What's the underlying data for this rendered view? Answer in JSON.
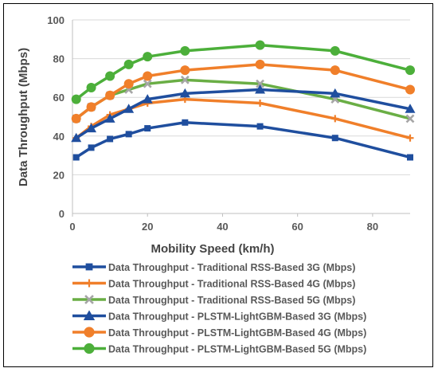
{
  "chart_data": {
    "type": "line",
    "xlabel": "Mobility Speed (km/h)",
    "ylabel": "Data Throughput (Mbps)",
    "xlim": [
      0,
      90
    ],
    "ylim": [
      0,
      100
    ],
    "x_ticks": [
      "0",
      "20",
      "40",
      "60",
      "80"
    ],
    "y_ticks": [
      "0",
      "20",
      "40",
      "60",
      "80",
      "100"
    ],
    "grid": "horizontal",
    "legend_position": "bottom",
    "x": [
      1,
      5,
      10,
      15,
      20,
      30,
      50,
      70,
      90
    ],
    "series": [
      {
        "name": "Data Throughput - Traditional RSS-Based 3G (Mbps)",
        "color": "#1F4E9E",
        "marker": "square",
        "values": [
          29,
          34,
          38.5,
          41,
          44,
          47,
          45,
          39,
          29
        ]
      },
      {
        "name": "Data Throughput - Traditional RSS-Based 4G (Mbps)",
        "color": "#F07F2A",
        "marker": "plus",
        "values": [
          39,
          45,
          51,
          54,
          57,
          59,
          57,
          49,
          39
        ]
      },
      {
        "name": "Data Throughput - Traditional RSS-Based 5G (Mbps)",
        "color": "#6AAE45",
        "marker": "x",
        "values": [
          49,
          55,
          61,
          64,
          67,
          69,
          67,
          59,
          49
        ]
      },
      {
        "name": "Data Throughput - PLSTM-LightGBM-Based 3G (Mbps)",
        "color": "#1F4E9E",
        "marker": "triangle",
        "values": [
          39,
          44,
          49,
          54,
          59,
          62,
          64,
          62,
          54
        ]
      },
      {
        "name": "Data Throughput - PLSTM-LightGBM-Based 4G (Mbps)",
        "color": "#F07F2A",
        "marker": "circle",
        "values": [
          49,
          55,
          61,
          67,
          71,
          74,
          77,
          74,
          64
        ]
      },
      {
        "name": "Data Throughput - PLSTM-LightGBM-Based 5G (Mbps)",
        "color": "#4CAF3A",
        "marker": "circle",
        "values": [
          59,
          65,
          71,
          77,
          81,
          84,
          87,
          84,
          74
        ]
      }
    ]
  }
}
